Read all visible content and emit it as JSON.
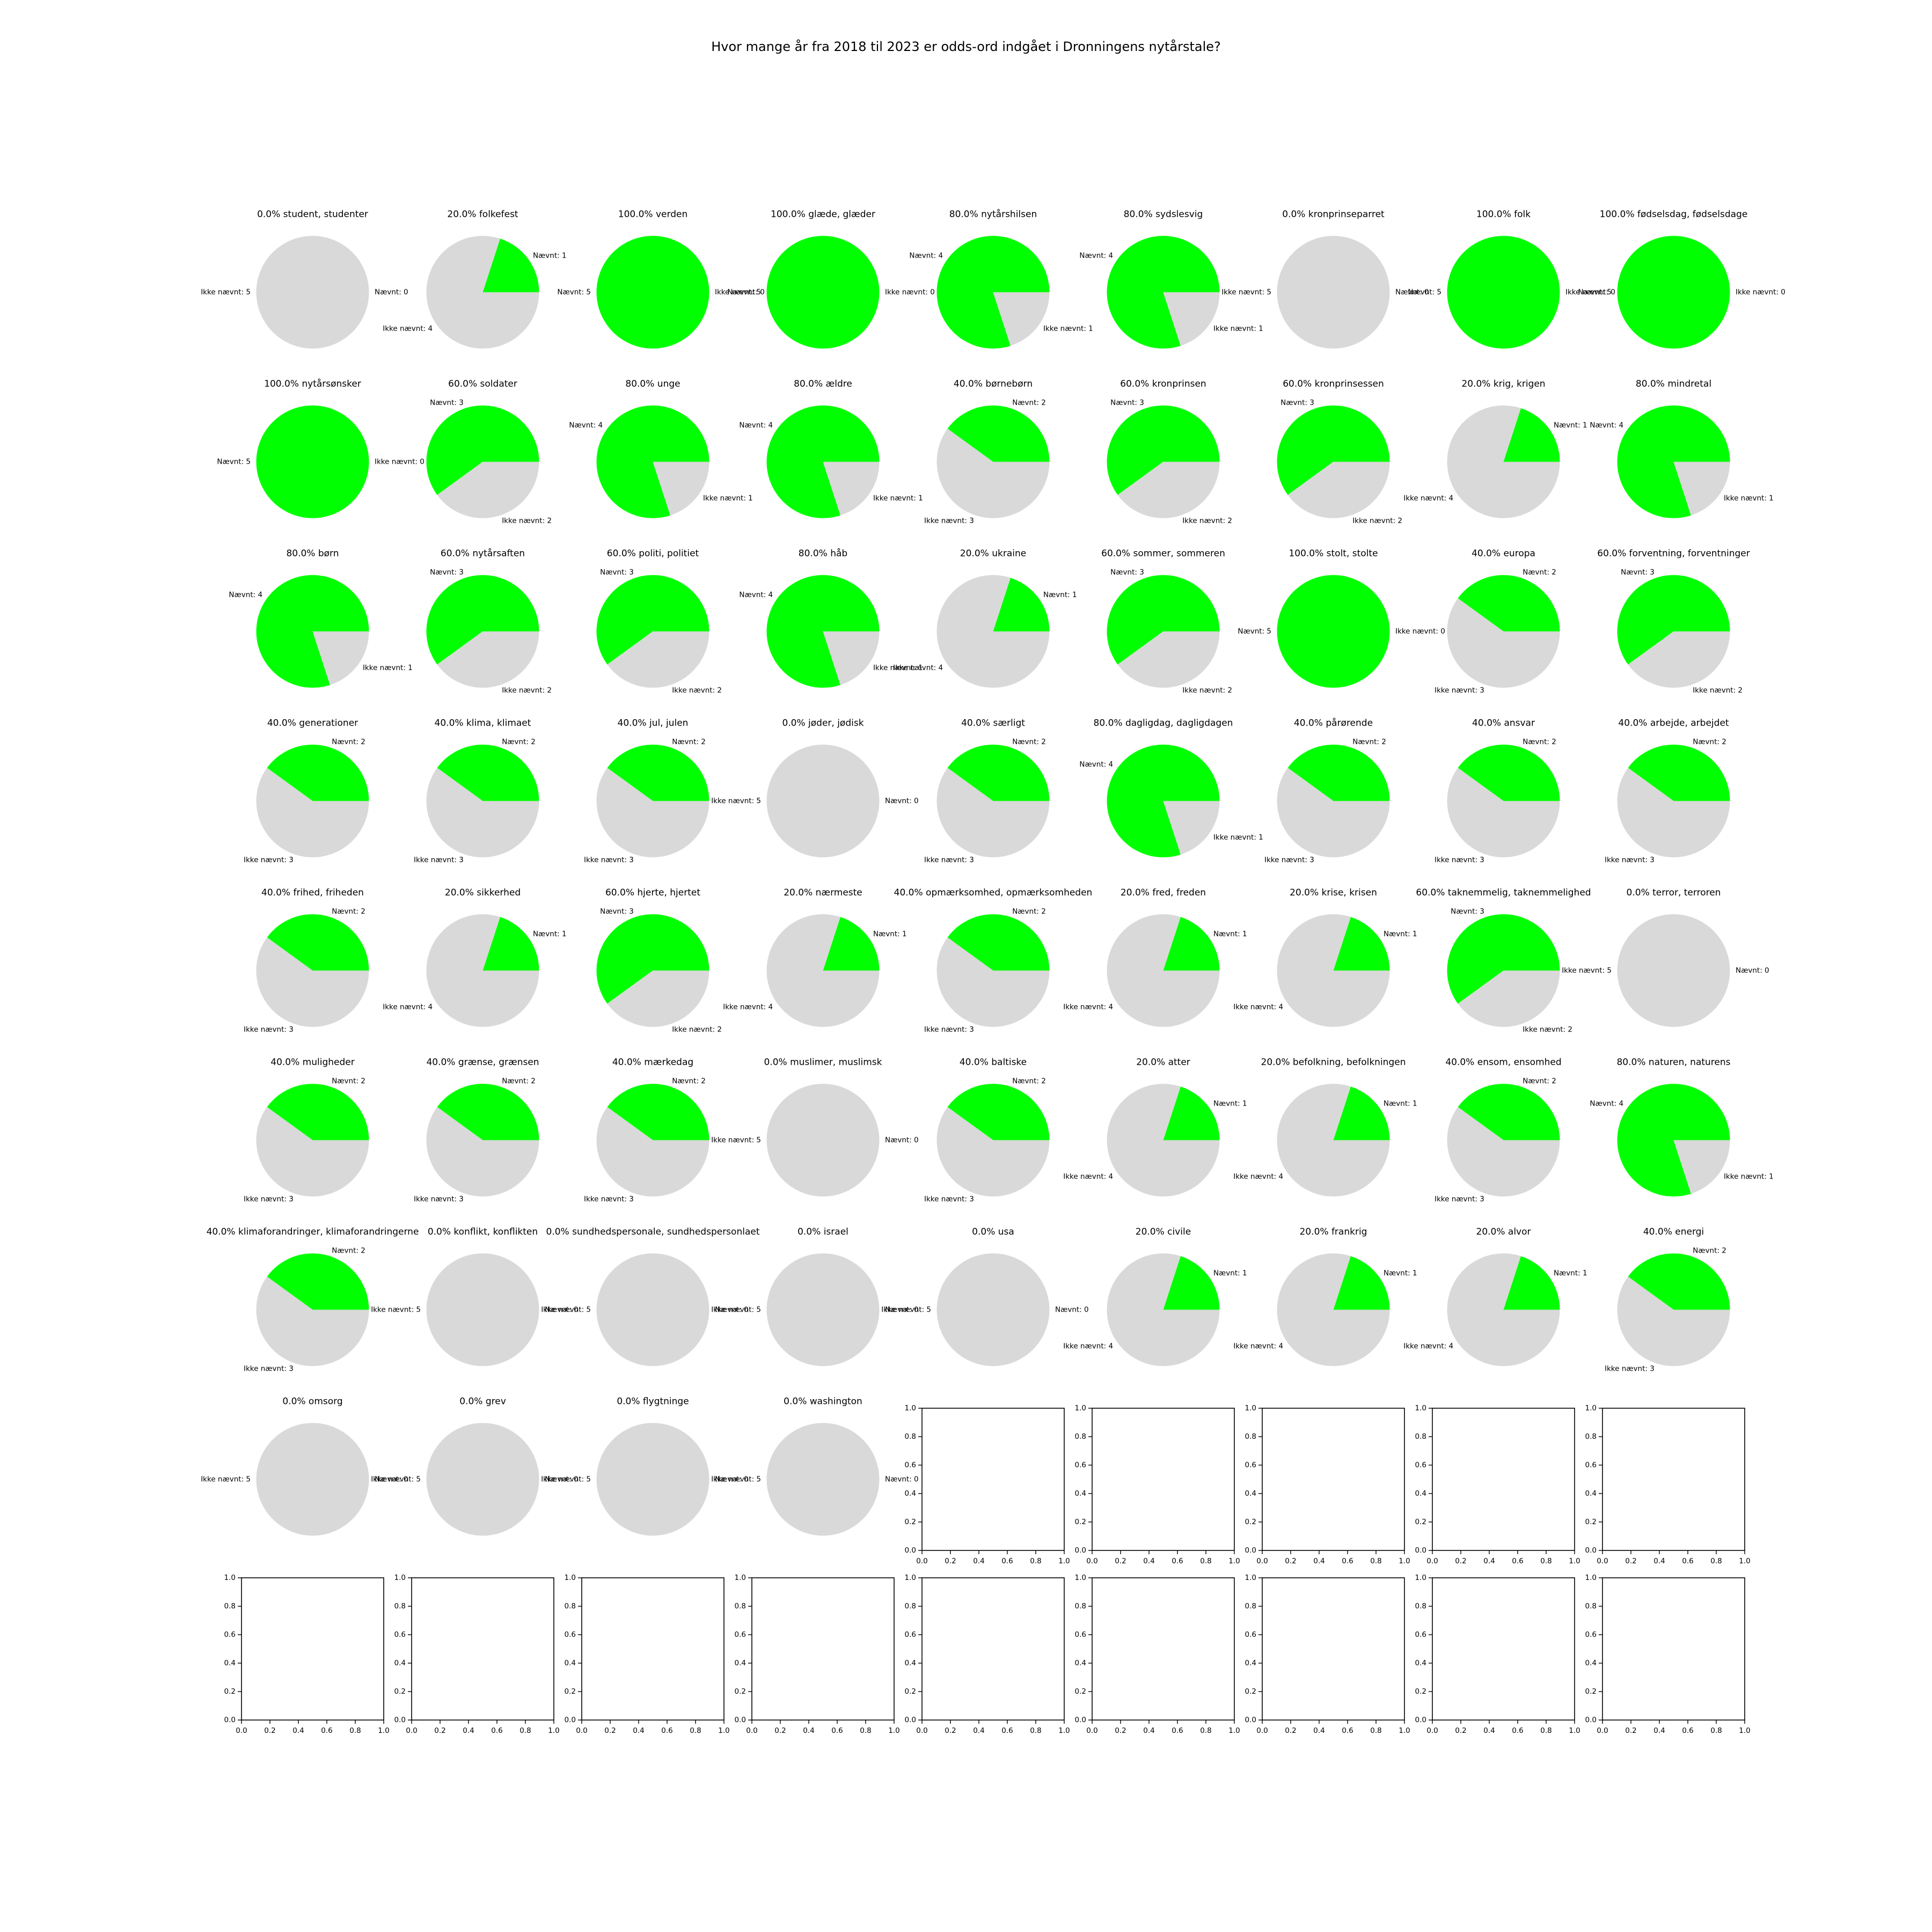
{
  "chart_data": {
    "type": "pie",
    "title": "Hvor mange år fra 2018 til 2023 er odds-ord indgået i Dronningens nytårstale?",
    "colors": {
      "mentioned": "#00ff00",
      "not_mentioned": "#d9d9d9"
    },
    "mentioned_label": "Nævnt",
    "not_mentioned_label": "Ikke nævnt",
    "grid": {
      "rows": 9,
      "cols": 9
    },
    "pies": [
      {
        "title": "0.0% student, studenter",
        "mentioned": 0,
        "not_mentioned": 5
      },
      {
        "title": "20.0% folkefest",
        "mentioned": 1,
        "not_mentioned": 4
      },
      {
        "title": "100.0% verden",
        "mentioned": 5,
        "not_mentioned": 0
      },
      {
        "title": "100.0% glæde, glæder",
        "mentioned": 5,
        "not_mentioned": 0
      },
      {
        "title": "80.0% nytårshilsen",
        "mentioned": 4,
        "not_mentioned": 1
      },
      {
        "title": "80.0% sydslesvig",
        "mentioned": 4,
        "not_mentioned": 1
      },
      {
        "title": "0.0% kronprinseparret",
        "mentioned": 0,
        "not_mentioned": 5
      },
      {
        "title": "100.0% folk",
        "mentioned": 5,
        "not_mentioned": 0
      },
      {
        "title": "100.0% fødselsdag, fødselsdage",
        "mentioned": 5,
        "not_mentioned": 0
      },
      {
        "title": "100.0% nytårsønsker",
        "mentioned": 5,
        "not_mentioned": 0
      },
      {
        "title": "60.0% soldater",
        "mentioned": 3,
        "not_mentioned": 2
      },
      {
        "title": "80.0% unge",
        "mentioned": 4,
        "not_mentioned": 1
      },
      {
        "title": "80.0% ældre",
        "mentioned": 4,
        "not_mentioned": 1
      },
      {
        "title": "40.0% børnebørn",
        "mentioned": 2,
        "not_mentioned": 3
      },
      {
        "title": "60.0% kronprinsen",
        "mentioned": 3,
        "not_mentioned": 2
      },
      {
        "title": "60.0% kronprinsessen",
        "mentioned": 3,
        "not_mentioned": 2
      },
      {
        "title": "20.0% krig, krigen",
        "mentioned": 1,
        "not_mentioned": 4
      },
      {
        "title": "80.0% mindretal",
        "mentioned": 4,
        "not_mentioned": 1
      },
      {
        "title": "80.0% børn",
        "mentioned": 4,
        "not_mentioned": 1
      },
      {
        "title": "60.0% nytårsaften",
        "mentioned": 3,
        "not_mentioned": 2
      },
      {
        "title": "60.0% politi, politiet",
        "mentioned": 3,
        "not_mentioned": 2
      },
      {
        "title": "80.0% håb",
        "mentioned": 4,
        "not_mentioned": 1
      },
      {
        "title": "20.0% ukraine",
        "mentioned": 1,
        "not_mentioned": 4
      },
      {
        "title": "60.0% sommer, sommeren",
        "mentioned": 3,
        "not_mentioned": 2
      },
      {
        "title": "100.0% stolt, stolte",
        "mentioned": 5,
        "not_mentioned": 0
      },
      {
        "title": "40.0% europa",
        "mentioned": 2,
        "not_mentioned": 3
      },
      {
        "title": "60.0% forventning, forventninger",
        "mentioned": 3,
        "not_mentioned": 2
      },
      {
        "title": "40.0% generationer",
        "mentioned": 2,
        "not_mentioned": 3
      },
      {
        "title": "40.0% klima, klimaet",
        "mentioned": 2,
        "not_mentioned": 3
      },
      {
        "title": "40.0% jul, julen",
        "mentioned": 2,
        "not_mentioned": 3
      },
      {
        "title": "0.0% jøder, jødisk",
        "mentioned": 0,
        "not_mentioned": 5
      },
      {
        "title": "40.0% særligt",
        "mentioned": 2,
        "not_mentioned": 3
      },
      {
        "title": "80.0% dagligdag, dagligdagen",
        "mentioned": 4,
        "not_mentioned": 1
      },
      {
        "title": "40.0% pårørende",
        "mentioned": 2,
        "not_mentioned": 3
      },
      {
        "title": "40.0% ansvar",
        "mentioned": 2,
        "not_mentioned": 3
      },
      {
        "title": "40.0% arbejde, arbejdet",
        "mentioned": 2,
        "not_mentioned": 3
      },
      {
        "title": "40.0% frihed, friheden",
        "mentioned": 2,
        "not_mentioned": 3
      },
      {
        "title": "20.0% sikkerhed",
        "mentioned": 1,
        "not_mentioned": 4
      },
      {
        "title": "60.0% hjerte, hjertet",
        "mentioned": 3,
        "not_mentioned": 2
      },
      {
        "title": "20.0% nærmeste",
        "mentioned": 1,
        "not_mentioned": 4
      },
      {
        "title": "40.0% opmærksomhed, opmærksomheden",
        "mentioned": 2,
        "not_mentioned": 3
      },
      {
        "title": "20.0% fred, freden",
        "mentioned": 1,
        "not_mentioned": 4
      },
      {
        "title": "20.0% krise, krisen",
        "mentioned": 1,
        "not_mentioned": 4
      },
      {
        "title": "60.0% taknemmelig, taknemmelighed",
        "mentioned": 3,
        "not_mentioned": 2
      },
      {
        "title": "0.0% terror, terroren",
        "mentioned": 0,
        "not_mentioned": 5
      },
      {
        "title": "40.0% muligheder",
        "mentioned": 2,
        "not_mentioned": 3
      },
      {
        "title": "40.0% grænse, grænsen",
        "mentioned": 2,
        "not_mentioned": 3
      },
      {
        "title": "40.0% mærkedag",
        "mentioned": 2,
        "not_mentioned": 3
      },
      {
        "title": "0.0% muslimer, muslimsk",
        "mentioned": 0,
        "not_mentioned": 5
      },
      {
        "title": "40.0% baltiske",
        "mentioned": 2,
        "not_mentioned": 3
      },
      {
        "title": "20.0% atter",
        "mentioned": 1,
        "not_mentioned": 4
      },
      {
        "title": "20.0% befolkning, befolkningen",
        "mentioned": 1,
        "not_mentioned": 4
      },
      {
        "title": "40.0% ensom, ensomhed",
        "mentioned": 2,
        "not_mentioned": 3
      },
      {
        "title": "80.0% naturen, naturens",
        "mentioned": 4,
        "not_mentioned": 1
      },
      {
        "title": "40.0% klimaforandringer, klimaforandringerne",
        "mentioned": 2,
        "not_mentioned": 3
      },
      {
        "title": "0.0% konflikt, konflikten",
        "mentioned": 0,
        "not_mentioned": 5
      },
      {
        "title": "0.0% sundhedspersonale, sundhedspersonlaet",
        "mentioned": 0,
        "not_mentioned": 5
      },
      {
        "title": "0.0% israel",
        "mentioned": 0,
        "not_mentioned": 5
      },
      {
        "title": "0.0% usa",
        "mentioned": 0,
        "not_mentioned": 5
      },
      {
        "title": "20.0% civile",
        "mentioned": 1,
        "not_mentioned": 4
      },
      {
        "title": "20.0% frankrig",
        "mentioned": 1,
        "not_mentioned": 4
      },
      {
        "title": "20.0% alvor",
        "mentioned": 1,
        "not_mentioned": 4
      },
      {
        "title": "40.0% energi",
        "mentioned": 2,
        "not_mentioned": 3
      },
      {
        "title": "0.0% omsorg",
        "mentioned": 0,
        "not_mentioned": 5
      },
      {
        "title": "0.0% grev",
        "mentioned": 0,
        "not_mentioned": 5
      },
      {
        "title": "0.0% flygtninge",
        "mentioned": 0,
        "not_mentioned": 5
      },
      {
        "title": "0.0% washington",
        "mentioned": 0,
        "not_mentioned": 5
      }
    ],
    "empty_axes": {
      "count": 14,
      "xlim": [
        0,
        1
      ],
      "ylim": [
        0,
        1
      ],
      "ticks": [
        "0.0",
        "0.2",
        "0.4",
        "0.6",
        "0.8",
        "1.0"
      ]
    }
  }
}
